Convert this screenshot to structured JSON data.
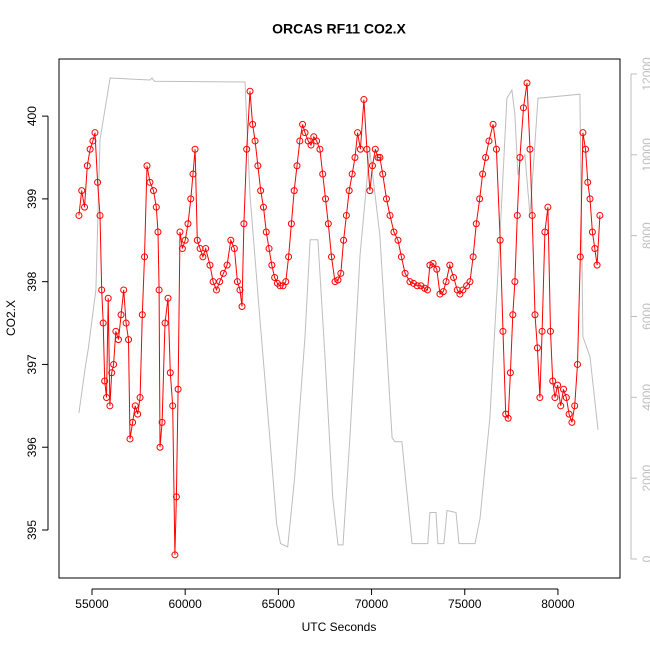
{
  "chart_data": {
    "type": "line",
    "title": "ORCAS RF11 CO2.X",
    "x_label": "UTC Seconds",
    "y_label": "CO2.X",
    "xlim": [
      53230,
      83330
    ],
    "ylim": [
      394.42,
      400.69
    ],
    "y2lim": [
      -470,
      12370
    ],
    "xticks": [
      55000,
      60000,
      65000,
      70000,
      75000,
      80000
    ],
    "yticks": [
      395,
      396,
      397,
      398,
      399,
      400
    ],
    "y2ticks": [
      0,
      2000,
      4000,
      6000,
      8000,
      10000,
      12000
    ],
    "y2_color": "#bebebe",
    "series": [
      {
        "color": "#ff0000",
        "markers": true,
        "x": [
          54300,
          54450,
          54600,
          54750,
          54900,
          55050,
          55160,
          55300,
          55430,
          55520,
          55600,
          55680,
          55780,
          55870,
          55960,
          56060,
          56160,
          56280,
          56420,
          56560,
          56700,
          56830,
          56960,
          57040,
          57180,
          57320,
          57450,
          57580,
          57700,
          57820,
          57950,
          58110,
          58300,
          58450,
          58540,
          58600,
          58650,
          58760,
          58920,
          59080,
          59200,
          59330,
          59450,
          59530,
          59620,
          59720,
          59850,
          60000,
          60150,
          60300,
          60420,
          60530,
          60650,
          60800,
          60950,
          61100,
          61330,
          61500,
          61680,
          61850,
          62050,
          62250,
          62450,
          62640,
          62800,
          62940,
          63050,
          63150,
          63300,
          63480,
          63620,
          63750,
          63900,
          64050,
          64200,
          64350,
          64500,
          64650,
          64800,
          64950,
          65090,
          65250,
          65400,
          65550,
          65700,
          65850,
          66000,
          66150,
          66300,
          66430,
          66600,
          66750,
          66900,
          67050,
          67230,
          67380,
          67530,
          67680,
          67850,
          68040,
          68200,
          68350,
          68500,
          68650,
          68800,
          68960,
          69110,
          69250,
          69400,
          69590,
          69750,
          69910,
          70050,
          70200,
          70350,
          70450,
          70600,
          70800,
          70990,
          71200,
          71420,
          71600,
          71800,
          72060,
          72250,
          72450,
          72650,
          72850,
          73000,
          73130,
          73300,
          73500,
          73670,
          73850,
          74000,
          74200,
          74400,
          74600,
          74740,
          74900,
          75100,
          75280,
          75450,
          75620,
          75800,
          75960,
          76120,
          76300,
          76520,
          76700,
          76900,
          77050,
          77200,
          77330,
          77450,
          77580,
          77690,
          77820,
          77960,
          78150,
          78340,
          78500,
          78620,
          78770,
          78900,
          79030,
          79150,
          79300,
          79460,
          79600,
          79720,
          79840,
          79980,
          80150,
          80300,
          80450,
          80600,
          80750,
          80900,
          81050,
          81200,
          81340,
          81480,
          81600,
          81720,
          81850,
          81980,
          82100,
          82250
        ],
        "values": [
          398.8,
          399.1,
          398.9,
          399.4,
          399.6,
          399.7,
          399.8,
          399.2,
          398.8,
          397.9,
          397.5,
          396.8,
          396.6,
          397.8,
          396.5,
          396.9,
          397.0,
          397.4,
          397.3,
          397.6,
          397.9,
          397.5,
          397.3,
          396.1,
          396.3,
          396.5,
          396.4,
          396.6,
          397.6,
          398.3,
          399.4,
          399.2,
          399.1,
          398.9,
          398.6,
          397.9,
          396.0,
          396.3,
          397.5,
          397.8,
          396.9,
          396.5,
          394.7,
          395.4,
          396.7,
          398.6,
          398.4,
          398.5,
          398.7,
          399.0,
          399.3,
          399.6,
          398.5,
          398.4,
          398.3,
          398.4,
          398.2,
          398.0,
          397.9,
          398.0,
          398.1,
          398.2,
          398.5,
          398.4,
          398.0,
          397.9,
          397.7,
          398.7,
          399.6,
          400.3,
          399.9,
          399.7,
          399.4,
          399.1,
          398.9,
          398.6,
          398.4,
          398.2,
          398.05,
          397.98,
          397.95,
          397.95,
          398.0,
          398.3,
          398.7,
          399.1,
          399.4,
          399.7,
          399.9,
          399.8,
          399.7,
          399.65,
          399.75,
          399.7,
          399.6,
          399.3,
          399.0,
          398.7,
          398.3,
          398.0,
          398.02,
          398.1,
          398.5,
          398.8,
          399.1,
          399.3,
          399.5,
          399.8,
          399.6,
          400.2,
          399.6,
          399.1,
          399.4,
          399.6,
          399.5,
          399.5,
          399.3,
          399.0,
          398.8,
          398.6,
          398.5,
          398.3,
          398.1,
          398.0,
          397.98,
          397.95,
          397.95,
          397.92,
          397.9,
          398.2,
          398.22,
          398.15,
          397.85,
          397.88,
          398.0,
          398.2,
          398.05,
          397.9,
          397.85,
          397.9,
          397.95,
          398.0,
          398.3,
          398.7,
          399.0,
          399.3,
          399.5,
          399.7,
          399.9,
          399.6,
          398.5,
          397.4,
          396.4,
          396.35,
          396.9,
          397.6,
          398.0,
          398.8,
          399.5,
          400.1,
          400.4,
          399.6,
          398.8,
          397.6,
          397.2,
          396.6,
          397.4,
          398.6,
          398.9,
          397.4,
          396.8,
          396.6,
          396.75,
          396.5,
          396.7,
          396.6,
          396.4,
          396.3,
          396.5,
          397.0,
          398.3,
          399.8,
          399.6,
          399.2,
          399.0,
          398.6,
          398.4,
          398.2,
          398.8
        ]
      },
      {
        "color": "#bebebe",
        "axis": "y2",
        "markers": false,
        "x": [
          54300,
          54620,
          54790,
          55210,
          55430,
          55970,
          58110,
          58220,
          58350,
          63210,
          63480,
          64000,
          64540,
          64910,
          65120,
          65500,
          65870,
          66430,
          66700,
          67120,
          67500,
          67920,
          68200,
          68470,
          68840,
          69380,
          69900,
          70450,
          71100,
          71250,
          71630,
          72170,
          73020,
          73130,
          73460,
          73560,
          73880,
          74050,
          74530,
          74690,
          75550,
          75820,
          76350,
          76890,
          77260,
          77530,
          77690,
          77850,
          77960,
          78230,
          78500,
          78930,
          81180,
          81340,
          81720,
          82150
        ],
        "values": [
          3610,
          4680,
          5170,
          6660,
          10370,
          11900,
          11850,
          11900,
          11820,
          11800,
          9000,
          6000,
          3000,
          850,
          380,
          300,
          2000,
          5500,
          7900,
          7900,
          5000,
          1500,
          350,
          350,
          3000,
          7500,
          10120,
          8000,
          3000,
          2900,
          2900,
          380,
          380,
          1150,
          1150,
          380,
          380,
          1200,
          1150,
          380,
          380,
          1000,
          3500,
          8000,
          11400,
          11600,
          11000,
          9500,
          9800,
          10000,
          8500,
          11400,
          11500,
          5500,
          5000,
          3200
        ]
      }
    ]
  }
}
